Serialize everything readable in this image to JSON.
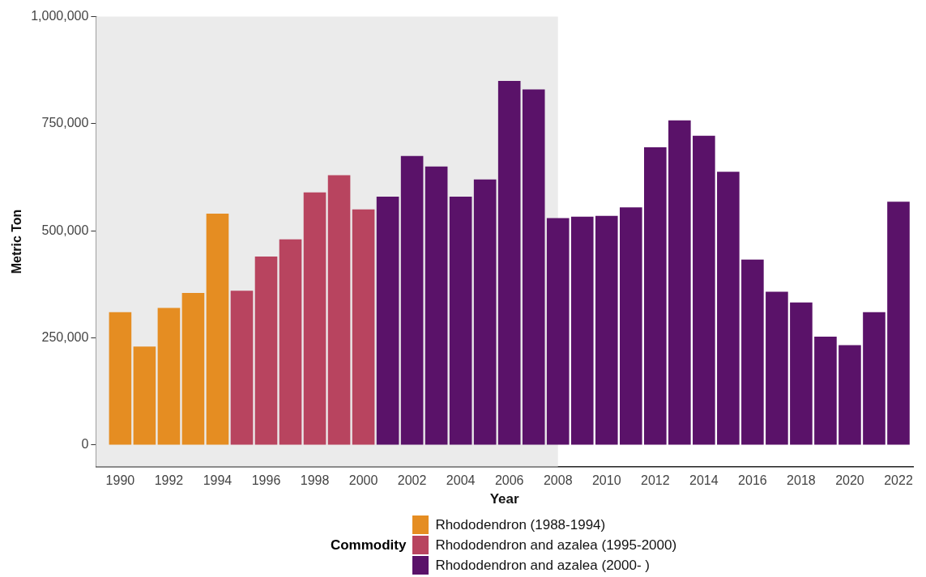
{
  "chart_data": {
    "type": "bar",
    "xlabel": "Year",
    "ylabel": "Metric Ton",
    "legend_title": "Commodity",
    "legend": "bottom",
    "grid": false,
    "xlim": [
      1989,
      2022.6
    ],
    "xticks": [
      1990,
      1992,
      1994,
      1996,
      1998,
      2000,
      2002,
      2004,
      2006,
      2008,
      2010,
      2012,
      2014,
      2016,
      2018,
      2020,
      2022
    ],
    "ylim": [
      -50000,
      1000000
    ],
    "yticks": [
      {
        "value": 0,
        "label": "0"
      },
      {
        "value": 250000,
        "label": "250,000"
      },
      {
        "value": 500000,
        "label": "500,000"
      },
      {
        "value": 750000,
        "label": "750,000"
      },
      {
        "value": 1000000,
        "label": "1,000,000"
      }
    ],
    "bands": [
      {
        "axis": "x",
        "from": 1989,
        "to": 2008,
        "color": "#ebebeb"
      }
    ],
    "series": [
      {
        "name": "Rhododendron (1988-1994)",
        "color": "#e58d22",
        "x": [
          1990,
          1991,
          1992,
          1993,
          1994
        ],
        "values": [
          310000,
          230000,
          320000,
          355000,
          540000
        ]
      },
      {
        "name": "Rhododendron and azalea (1995-2000)",
        "color": "#b8445f",
        "x": [
          1995,
          1996,
          1997,
          1998,
          1999,
          2000
        ],
        "values": [
          360000,
          440000,
          480000,
          590000,
          630000,
          550000
        ]
      },
      {
        "name": "Rhododendron and azalea (2000- )",
        "color": "#5a1269",
        "x": [
          2001,
          2002,
          2003,
          2004,
          2005,
          2006,
          2007,
          2008,
          2009,
          2010,
          2011,
          2012,
          2013,
          2014,
          2015,
          2016,
          2017,
          2018,
          2019,
          2020,
          2021,
          2022
        ],
        "values": [
          580000,
          675000,
          650000,
          580000,
          620000,
          850000,
          830000,
          530000,
          533000,
          535000,
          555000,
          695000,
          758000,
          722000,
          638000,
          433000,
          358000,
          333000,
          253000,
          233000,
          310000,
          568000
        ]
      }
    ]
  }
}
